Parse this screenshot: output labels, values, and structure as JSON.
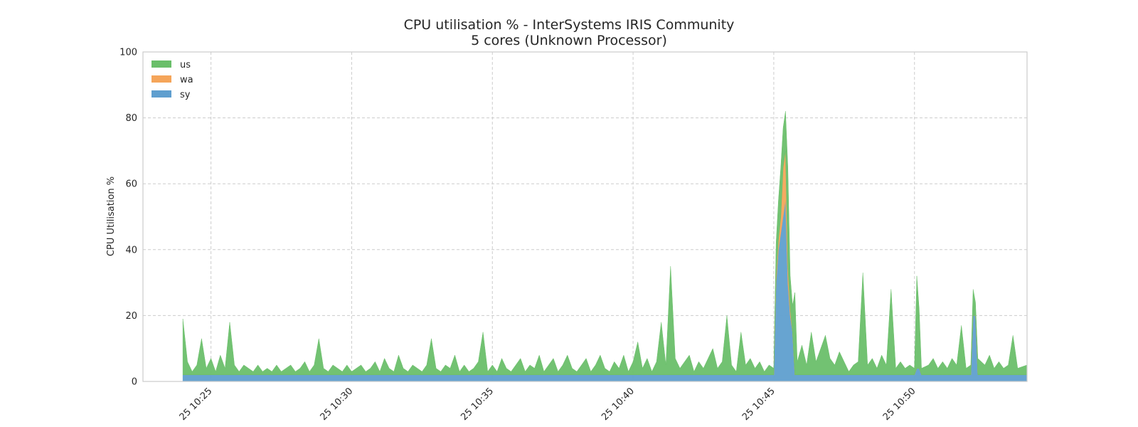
{
  "chart_data": {
    "type": "area",
    "title": "CPU utilisation % - InterSystems IRIS Community",
    "subtitle": "5 cores (Unknown Processor)",
    "ylabel": "CPU Utilisation %",
    "xlabel": "",
    "ylim": [
      0,
      100
    ],
    "yticks": [
      0,
      20,
      40,
      60,
      80,
      100
    ],
    "xlim": [
      "10:22:35",
      "10:54:00"
    ],
    "xticks": [
      {
        "t": "10:25",
        "label": "25 10:25"
      },
      {
        "t": "10:30",
        "label": "25 10:30"
      },
      {
        "t": "10:35",
        "label": "25 10:35"
      },
      {
        "t": "10:40",
        "label": "25 10:40"
      },
      {
        "t": "10:45",
        "label": "25 10:45"
      },
      {
        "t": "10:50",
        "label": "25 10:50"
      }
    ],
    "grid": true,
    "legend": "top-left",
    "stacked": true,
    "series": [
      {
        "name": "us",
        "color": "#6abf6a"
      },
      {
        "name": "wa",
        "color": "#f5a55a"
      },
      {
        "name": "sy",
        "color": "#5f9fcf"
      }
    ],
    "data_start": "10:24:00",
    "data_end": "10:54:00",
    "points": [
      {
        "t": "10:24:00",
        "sy": 2,
        "wa": 0,
        "us": 17
      },
      {
        "t": "10:24:10",
        "sy": 2,
        "wa": 0,
        "us": 4
      },
      {
        "t": "10:24:20",
        "sy": 2,
        "wa": 0,
        "us": 1
      },
      {
        "t": "10:24:30",
        "sy": 2,
        "wa": 0,
        "us": 3
      },
      {
        "t": "10:24:40",
        "sy": 2,
        "wa": 0,
        "us": 11
      },
      {
        "t": "10:24:50",
        "sy": 2,
        "wa": 0,
        "us": 2
      },
      {
        "t": "10:25:00",
        "sy": 2,
        "wa": 0,
        "us": 5
      },
      {
        "t": "10:25:10",
        "sy": 2,
        "wa": 0,
        "us": 1
      },
      {
        "t": "10:25:20",
        "sy": 2,
        "wa": 0,
        "us": 6
      },
      {
        "t": "10:25:30",
        "sy": 2,
        "wa": 0,
        "us": 2
      },
      {
        "t": "10:25:40",
        "sy": 2,
        "wa": 0,
        "us": 16
      },
      {
        "t": "10:25:50",
        "sy": 2,
        "wa": 0,
        "us": 3
      },
      {
        "t": "10:26:00",
        "sy": 2,
        "wa": 0,
        "us": 1
      },
      {
        "t": "10:26:10",
        "sy": 2,
        "wa": 0,
        "us": 3
      },
      {
        "t": "10:26:20",
        "sy": 2,
        "wa": 0,
        "us": 2
      },
      {
        "t": "10:26:30",
        "sy": 2,
        "wa": 0,
        "us": 1
      },
      {
        "t": "10:26:40",
        "sy": 2,
        "wa": 0,
        "us": 3
      },
      {
        "t": "10:26:50",
        "sy": 2,
        "wa": 0,
        "us": 1
      },
      {
        "t": "10:27:00",
        "sy": 2,
        "wa": 0,
        "us": 2
      },
      {
        "t": "10:27:10",
        "sy": 2,
        "wa": 0,
        "us": 1
      },
      {
        "t": "10:27:20",
        "sy": 2,
        "wa": 0,
        "us": 3
      },
      {
        "t": "10:27:30",
        "sy": 2,
        "wa": 0,
        "us": 1
      },
      {
        "t": "10:27:40",
        "sy": 2,
        "wa": 0,
        "us": 2
      },
      {
        "t": "10:27:50",
        "sy": 2,
        "wa": 0,
        "us": 3
      },
      {
        "t": "10:28:00",
        "sy": 2,
        "wa": 0,
        "us": 1
      },
      {
        "t": "10:28:10",
        "sy": 2,
        "wa": 0,
        "us": 2
      },
      {
        "t": "10:28:20",
        "sy": 2,
        "wa": 0,
        "us": 4
      },
      {
        "t": "10:28:30",
        "sy": 2,
        "wa": 0,
        "us": 1
      },
      {
        "t": "10:28:40",
        "sy": 2,
        "wa": 0,
        "us": 3
      },
      {
        "t": "10:28:50",
        "sy": 2,
        "wa": 0,
        "us": 11
      },
      {
        "t": "10:29:00",
        "sy": 2,
        "wa": 0,
        "us": 2
      },
      {
        "t": "10:29:10",
        "sy": 2,
        "wa": 0,
        "us": 1
      },
      {
        "t": "10:29:20",
        "sy": 2,
        "wa": 0,
        "us": 3
      },
      {
        "t": "10:29:30",
        "sy": 2,
        "wa": 0,
        "us": 2
      },
      {
        "t": "10:29:40",
        "sy": 2,
        "wa": 0,
        "us": 1
      },
      {
        "t": "10:29:50",
        "sy": 2,
        "wa": 0,
        "us": 3
      },
      {
        "t": "10:30:00",
        "sy": 2,
        "wa": 0,
        "us": 1
      },
      {
        "t": "10:30:10",
        "sy": 2,
        "wa": 0,
        "us": 2
      },
      {
        "t": "10:30:20",
        "sy": 2,
        "wa": 0,
        "us": 3
      },
      {
        "t": "10:30:30",
        "sy": 2,
        "wa": 0,
        "us": 1
      },
      {
        "t": "10:30:40",
        "sy": 2,
        "wa": 0,
        "us": 2
      },
      {
        "t": "10:30:50",
        "sy": 2,
        "wa": 0,
        "us": 4
      },
      {
        "t": "10:31:00",
        "sy": 2,
        "wa": 0,
        "us": 1
      },
      {
        "t": "10:31:10",
        "sy": 2,
        "wa": 0,
        "us": 5
      },
      {
        "t": "10:31:20",
        "sy": 2,
        "wa": 0,
        "us": 2
      },
      {
        "t": "10:31:30",
        "sy": 2,
        "wa": 0,
        "us": 1
      },
      {
        "t": "10:31:40",
        "sy": 2,
        "wa": 0,
        "us": 6
      },
      {
        "t": "10:31:50",
        "sy": 2,
        "wa": 0,
        "us": 2
      },
      {
        "t": "10:32:00",
        "sy": 2,
        "wa": 0,
        "us": 1
      },
      {
        "t": "10:32:10",
        "sy": 2,
        "wa": 0,
        "us": 3
      },
      {
        "t": "10:32:20",
        "sy": 2,
        "wa": 0,
        "us": 2
      },
      {
        "t": "10:32:30",
        "sy": 2,
        "wa": 0,
        "us": 1
      },
      {
        "t": "10:32:40",
        "sy": 2,
        "wa": 0,
        "us": 3
      },
      {
        "t": "10:32:50",
        "sy": 2,
        "wa": 0,
        "us": 11
      },
      {
        "t": "10:33:00",
        "sy": 2,
        "wa": 0,
        "us": 2
      },
      {
        "t": "10:33:10",
        "sy": 2,
        "wa": 0,
        "us": 1
      },
      {
        "t": "10:33:20",
        "sy": 2,
        "wa": 0,
        "us": 3
      },
      {
        "t": "10:33:30",
        "sy": 2,
        "wa": 0,
        "us": 2
      },
      {
        "t": "10:33:40",
        "sy": 2,
        "wa": 0,
        "us": 6
      },
      {
        "t": "10:33:50",
        "sy": 2,
        "wa": 0,
        "us": 1
      },
      {
        "t": "10:34:00",
        "sy": 2,
        "wa": 0,
        "us": 3
      },
      {
        "t": "10:34:10",
        "sy": 2,
        "wa": 0,
        "us": 1
      },
      {
        "t": "10:34:20",
        "sy": 2,
        "wa": 0,
        "us": 2
      },
      {
        "t": "10:34:30",
        "sy": 2,
        "wa": 0,
        "us": 4
      },
      {
        "t": "10:34:40",
        "sy": 2,
        "wa": 0,
        "us": 13
      },
      {
        "t": "10:34:50",
        "sy": 2,
        "wa": 0,
        "us": 1
      },
      {
        "t": "10:35:00",
        "sy": 2,
        "wa": 0,
        "us": 3
      },
      {
        "t": "10:35:10",
        "sy": 2,
        "wa": 0,
        "us": 1
      },
      {
        "t": "10:35:20",
        "sy": 2,
        "wa": 0,
        "us": 5
      },
      {
        "t": "10:35:30",
        "sy": 2,
        "wa": 0,
        "us": 2
      },
      {
        "t": "10:35:40",
        "sy": 2,
        "wa": 0,
        "us": 1
      },
      {
        "t": "10:35:50",
        "sy": 2,
        "wa": 0,
        "us": 3
      },
      {
        "t": "10:36:00",
        "sy": 2,
        "wa": 0,
        "us": 5
      },
      {
        "t": "10:36:10",
        "sy": 2,
        "wa": 0,
        "us": 1
      },
      {
        "t": "10:36:20",
        "sy": 2,
        "wa": 0,
        "us": 3
      },
      {
        "t": "10:36:30",
        "sy": 2,
        "wa": 0,
        "us": 2
      },
      {
        "t": "10:36:40",
        "sy": 2,
        "wa": 0,
        "us": 6
      },
      {
        "t": "10:36:50",
        "sy": 2,
        "wa": 0,
        "us": 1
      },
      {
        "t": "10:37:00",
        "sy": 2,
        "wa": 0,
        "us": 3
      },
      {
        "t": "10:37:10",
        "sy": 2,
        "wa": 0,
        "us": 5
      },
      {
        "t": "10:37:20",
        "sy": 2,
        "wa": 0,
        "us": 1
      },
      {
        "t": "10:37:30",
        "sy": 2,
        "wa": 0,
        "us": 3
      },
      {
        "t": "10:37:40",
        "sy": 2,
        "wa": 0,
        "us": 6
      },
      {
        "t": "10:37:50",
        "sy": 2,
        "wa": 0,
        "us": 2
      },
      {
        "t": "10:38:00",
        "sy": 2,
        "wa": 0,
        "us": 1
      },
      {
        "t": "10:38:10",
        "sy": 2,
        "wa": 0,
        "us": 3
      },
      {
        "t": "10:38:20",
        "sy": 2,
        "wa": 0,
        "us": 5
      },
      {
        "t": "10:38:30",
        "sy": 2,
        "wa": 0,
        "us": 1
      },
      {
        "t": "10:38:40",
        "sy": 2,
        "wa": 0,
        "us": 3
      },
      {
        "t": "10:38:50",
        "sy": 2,
        "wa": 0,
        "us": 6
      },
      {
        "t": "10:39:00",
        "sy": 2,
        "wa": 0,
        "us": 2
      },
      {
        "t": "10:39:10",
        "sy": 2,
        "wa": 0,
        "us": 1
      },
      {
        "t": "10:39:20",
        "sy": 2,
        "wa": 0,
        "us": 4
      },
      {
        "t": "10:39:30",
        "sy": 2,
        "wa": 0,
        "us": 2
      },
      {
        "t": "10:39:40",
        "sy": 2,
        "wa": 0,
        "us": 6
      },
      {
        "t": "10:39:50",
        "sy": 2,
        "wa": 0,
        "us": 1
      },
      {
        "t": "10:40:00",
        "sy": 2,
        "wa": 0,
        "us": 4
      },
      {
        "t": "10:40:10",
        "sy": 2,
        "wa": 0,
        "us": 10
      },
      {
        "t": "10:40:20",
        "sy": 2,
        "wa": 0,
        "us": 2
      },
      {
        "t": "10:40:30",
        "sy": 2,
        "wa": 0,
        "us": 5
      },
      {
        "t": "10:40:40",
        "sy": 2,
        "wa": 0,
        "us": 1
      },
      {
        "t": "10:40:50",
        "sy": 2,
        "wa": 0,
        "us": 4
      },
      {
        "t": "10:41:00",
        "sy": 2,
        "wa": 0,
        "us": 16
      },
      {
        "t": "10:41:10",
        "sy": 2,
        "wa": 0,
        "us": 3
      },
      {
        "t": "10:41:20",
        "sy": 2,
        "wa": 0,
        "us": 33
      },
      {
        "t": "10:41:30",
        "sy": 2,
        "wa": 0,
        "us": 5
      },
      {
        "t": "10:41:40",
        "sy": 2,
        "wa": 0,
        "us": 2
      },
      {
        "t": "10:41:50",
        "sy": 2,
        "wa": 0,
        "us": 4
      },
      {
        "t": "10:42:00",
        "sy": 2,
        "wa": 0,
        "us": 6
      },
      {
        "t": "10:42:10",
        "sy": 2,
        "wa": 0,
        "us": 1
      },
      {
        "t": "10:42:20",
        "sy": 2,
        "wa": 0,
        "us": 4
      },
      {
        "t": "10:42:30",
        "sy": 2,
        "wa": 0,
        "us": 2
      },
      {
        "t": "10:42:40",
        "sy": 2,
        "wa": 0,
        "us": 5
      },
      {
        "t": "10:42:50",
        "sy": 2,
        "wa": 0,
        "us": 8
      },
      {
        "t": "10:43:00",
        "sy": 2,
        "wa": 0,
        "us": 2
      },
      {
        "t": "10:43:10",
        "sy": 2,
        "wa": 0,
        "us": 4
      },
      {
        "t": "10:43:20",
        "sy": 2,
        "wa": 0,
        "us": 18
      },
      {
        "t": "10:43:30",
        "sy": 2,
        "wa": 0,
        "us": 3
      },
      {
        "t": "10:43:40",
        "sy": 2,
        "wa": 0,
        "us": 1
      },
      {
        "t": "10:43:50",
        "sy": 2,
        "wa": 0,
        "us": 13
      },
      {
        "t": "10:44:00",
        "sy": 2,
        "wa": 0,
        "us": 3
      },
      {
        "t": "10:44:10",
        "sy": 2,
        "wa": 0,
        "us": 5
      },
      {
        "t": "10:44:20",
        "sy": 2,
        "wa": 0,
        "us": 2
      },
      {
        "t": "10:44:30",
        "sy": 2,
        "wa": 0,
        "us": 4
      },
      {
        "t": "10:44:40",
        "sy": 2,
        "wa": 0,
        "us": 1
      },
      {
        "t": "10:44:50",
        "sy": 2,
        "wa": 0,
        "us": 3
      },
      {
        "t": "10:45:00",
        "sy": 2,
        "wa": 0,
        "us": 2
      },
      {
        "t": "10:45:05",
        "sy": 30,
        "wa": 2,
        "us": 10
      },
      {
        "t": "10:45:10",
        "sy": 40,
        "wa": 3,
        "us": 12
      },
      {
        "t": "10:45:15",
        "sy": 45,
        "wa": 5,
        "us": 15
      },
      {
        "t": "10:45:20",
        "sy": 50,
        "wa": 15,
        "us": 12
      },
      {
        "t": "10:45:25",
        "sy": 55,
        "wa": 15,
        "us": 12
      },
      {
        "t": "10:45:30",
        "sy": 30,
        "wa": 5,
        "us": 30
      },
      {
        "t": "10:45:35",
        "sy": 20,
        "wa": 2,
        "us": 10
      },
      {
        "t": "10:45:40",
        "sy": 15,
        "wa": 0,
        "us": 8
      },
      {
        "t": "10:45:45",
        "sy": 2,
        "wa": 0,
        "us": 25
      },
      {
        "t": "10:45:50",
        "sy": 2,
        "wa": 0,
        "us": 4
      },
      {
        "t": "10:46:00",
        "sy": 2,
        "wa": 0,
        "us": 9
      },
      {
        "t": "10:46:10",
        "sy": 2,
        "wa": 0,
        "us": 3
      },
      {
        "t": "10:46:20",
        "sy": 2,
        "wa": 0,
        "us": 13
      },
      {
        "t": "10:46:30",
        "sy": 2,
        "wa": 0,
        "us": 4
      },
      {
        "t": "10:46:40",
        "sy": 2,
        "wa": 0,
        "us": 8
      },
      {
        "t": "10:46:50",
        "sy": 2,
        "wa": 0,
        "us": 12
      },
      {
        "t": "10:47:00",
        "sy": 2,
        "wa": 0,
        "us": 5
      },
      {
        "t": "10:47:10",
        "sy": 2,
        "wa": 0,
        "us": 3
      },
      {
        "t": "10:47:20",
        "sy": 2,
        "wa": 0,
        "us": 7
      },
      {
        "t": "10:47:30",
        "sy": 2,
        "wa": 0,
        "us": 4
      },
      {
        "t": "10:47:40",
        "sy": 2,
        "wa": 0,
        "us": 1
      },
      {
        "t": "10:47:50",
        "sy": 2,
        "wa": 0,
        "us": 3
      },
      {
        "t": "10:48:00",
        "sy": 2,
        "wa": 0,
        "us": 4
      },
      {
        "t": "10:48:10",
        "sy": 2,
        "wa": 0,
        "us": 31
      },
      {
        "t": "10:48:20",
        "sy": 2,
        "wa": 0,
        "us": 3
      },
      {
        "t": "10:48:30",
        "sy": 2,
        "wa": 0,
        "us": 5
      },
      {
        "t": "10:48:40",
        "sy": 2,
        "wa": 0,
        "us": 2
      },
      {
        "t": "10:48:50",
        "sy": 2,
        "wa": 0,
        "us": 6
      },
      {
        "t": "10:49:00",
        "sy": 2,
        "wa": 0,
        "us": 3
      },
      {
        "t": "10:49:10",
        "sy": 2,
        "wa": 0,
        "us": 26
      },
      {
        "t": "10:49:20",
        "sy": 2,
        "wa": 0,
        "us": 2
      },
      {
        "t": "10:49:30",
        "sy": 2,
        "wa": 0,
        "us": 4
      },
      {
        "t": "10:49:40",
        "sy": 2,
        "wa": 0,
        "us": 2
      },
      {
        "t": "10:49:50",
        "sy": 2,
        "wa": 0,
        "us": 3
      },
      {
        "t": "10:50:00",
        "sy": 2,
        "wa": 0,
        "us": 2
      },
      {
        "t": "10:50:05",
        "sy": 4,
        "wa": 0,
        "us": 28
      },
      {
        "t": "10:50:10",
        "sy": 4,
        "wa": 0,
        "us": 18
      },
      {
        "t": "10:50:15",
        "sy": 2,
        "wa": 0,
        "us": 2
      },
      {
        "t": "10:50:30",
        "sy": 2,
        "wa": 0,
        "us": 3
      },
      {
        "t": "10:50:40",
        "sy": 2,
        "wa": 0,
        "us": 5
      },
      {
        "t": "10:50:50",
        "sy": 2,
        "wa": 0,
        "us": 2
      },
      {
        "t": "10:51:00",
        "sy": 2,
        "wa": 0,
        "us": 4
      },
      {
        "t": "10:51:10",
        "sy": 2,
        "wa": 0,
        "us": 2
      },
      {
        "t": "10:51:20",
        "sy": 2,
        "wa": 0,
        "us": 5
      },
      {
        "t": "10:51:30",
        "sy": 2,
        "wa": 0,
        "us": 3
      },
      {
        "t": "10:51:40",
        "sy": 2,
        "wa": 0,
        "us": 15
      },
      {
        "t": "10:51:50",
        "sy": 2,
        "wa": 0,
        "us": 2
      },
      {
        "t": "10:52:00",
        "sy": 2,
        "wa": 0,
        "us": 3
      },
      {
        "t": "10:52:05",
        "sy": 20,
        "wa": 0,
        "us": 8
      },
      {
        "t": "10:52:10",
        "sy": 20,
        "wa": 0,
        "us": 4
      },
      {
        "t": "10:52:15",
        "sy": 2,
        "wa": 0,
        "us": 5
      },
      {
        "t": "10:52:30",
        "sy": 2,
        "wa": 0,
        "us": 3
      },
      {
        "t": "10:52:40",
        "sy": 2,
        "wa": 0,
        "us": 6
      },
      {
        "t": "10:52:50",
        "sy": 2,
        "wa": 0,
        "us": 2
      },
      {
        "t": "10:53:00",
        "sy": 2,
        "wa": 0,
        "us": 4
      },
      {
        "t": "10:53:10",
        "sy": 2,
        "wa": 0,
        "us": 2
      },
      {
        "t": "10:53:20",
        "sy": 2,
        "wa": 0,
        "us": 3
      },
      {
        "t": "10:53:30",
        "sy": 2,
        "wa": 0,
        "us": 12
      },
      {
        "t": "10:53:40",
        "sy": 2,
        "wa": 0,
        "us": 2
      },
      {
        "t": "10:54:00",
        "sy": 2,
        "wa": 0,
        "us": 3
      }
    ]
  }
}
